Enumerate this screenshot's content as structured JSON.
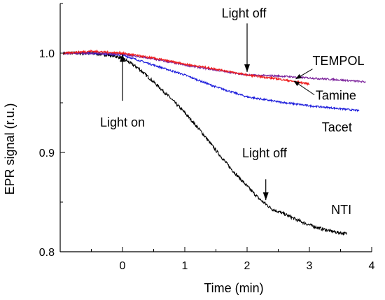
{
  "chart_data": {
    "type": "line",
    "title": "",
    "xlabel": "Time (min)",
    "ylabel": "EPR signal (r.u.)",
    "xlim": [
      -1,
      4
    ],
    "ylim": [
      0.8,
      1.05
    ],
    "xticks": [
      0,
      1,
      2,
      3,
      4
    ],
    "xtick_labels": [
      "0",
      "1",
      "2",
      "3",
      "4"
    ],
    "yticks": [
      0.8,
      0.9,
      1.0
    ],
    "ytick_labels": [
      "0.8",
      "0.9",
      "1.0"
    ],
    "grid": false,
    "legend": "none",
    "series": [
      {
        "name": "TEMPOL",
        "color": "#7a1f9a",
        "x": [
          -0.95,
          -0.5,
          0,
          0.5,
          1.0,
          1.5,
          2.0,
          2.5,
          3.0,
          3.5,
          3.9
        ],
        "y": [
          1.0,
          1.0,
          0.999,
          0.994,
          0.988,
          0.983,
          0.978,
          0.977,
          0.975,
          0.973,
          0.971
        ]
      },
      {
        "name": "Tamine",
        "color": "#ee1c1c",
        "x": [
          -0.95,
          -0.5,
          0,
          0.5,
          1.0,
          1.5,
          2.0,
          2.5,
          3.0
        ],
        "y": [
          1.0,
          1.002,
          1.0,
          0.995,
          0.989,
          0.984,
          0.978,
          0.974,
          0.969
        ]
      },
      {
        "name": "Tacet",
        "color": "#1a1adb",
        "x": [
          -0.95,
          -0.5,
          0,
          0.25,
          0.5,
          1.0,
          1.5,
          2.0,
          2.5,
          3.0,
          3.5,
          3.8
        ],
        "y": [
          1.0,
          1.0,
          0.998,
          0.993,
          0.988,
          0.978,
          0.966,
          0.956,
          0.951,
          0.947,
          0.944,
          0.942
        ]
      },
      {
        "name": "NTI",
        "color": "#000000",
        "x": [
          -0.95,
          -0.5,
          -0.2,
          0,
          0.25,
          0.5,
          0.75,
          1.0,
          1.25,
          1.5,
          1.75,
          2.0,
          2.2,
          2.4,
          2.6,
          2.8,
          3.0,
          3.2,
          3.4,
          3.6
        ],
        "y": [
          1.0,
          1.0,
          0.998,
          0.995,
          0.985,
          0.971,
          0.956,
          0.94,
          0.922,
          0.902,
          0.883,
          0.866,
          0.853,
          0.843,
          0.838,
          0.832,
          0.827,
          0.823,
          0.82,
          0.818
        ]
      }
    ],
    "annotations": [
      {
        "id": "light-on",
        "text": "Light on",
        "arrow_x": 0,
        "arrow_y_from": 0.952,
        "arrow_y_to": 0.999,
        "text_x": 0,
        "text_y": 0.926
      },
      {
        "id": "light-off-top",
        "text": "Light off",
        "arrow_x": 2,
        "arrow_y_from": 1.03,
        "arrow_y_to": 0.981,
        "text_x": 1.95,
        "text_y": 1.036
      },
      {
        "id": "light-off-bottom",
        "text": "Light off",
        "arrow_x": 2.3,
        "arrow_y_from": 0.873,
        "arrow_y_to": 0.852,
        "text_x": 2.28,
        "text_y": 0.895
      }
    ],
    "series_labels": [
      {
        "text": "TEMPOL",
        "x": 3.05,
        "y": 0.988
      },
      {
        "text": "Tamine",
        "x": 3.1,
        "y": 0.953
      },
      {
        "text": "Tacet",
        "x": 3.2,
        "y": 0.921
      },
      {
        "text": "NTI",
        "x": 3.35,
        "y": 0.838
      }
    ]
  }
}
